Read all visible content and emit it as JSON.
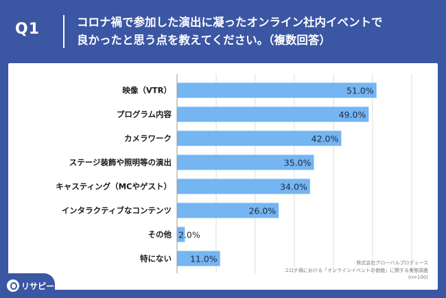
{
  "header": {
    "question_label": "Q1",
    "title_line1": "コロナ禍で参加した演出に凝ったオンライン社内イベントで",
    "title_line2": "良かったと思う点を教えてください。（複数回答）"
  },
  "chart_data": {
    "type": "bar",
    "orientation": "horizontal",
    "categories": [
      "映像（VTR）",
      "プログラム内容",
      "カメラワーク",
      "ステージ装飾や照明等の演出",
      "キャスティング（MCやゲスト）",
      "インタラクティブなコンテンツ",
      "その他",
      "特にない"
    ],
    "values": [
      51.0,
      49.0,
      42.0,
      35.0,
      34.0,
      26.0,
      2.0,
      11.0
    ],
    "value_labels": [
      "51.0%",
      "49.0%",
      "42.0%",
      "35.0%",
      "34.0%",
      "26.0%",
      "2.0%",
      "11.0%"
    ],
    "xlim": [
      0,
      60
    ],
    "gridlines": [
      0,
      10,
      20,
      30,
      40,
      50,
      60
    ],
    "grid": true,
    "bar_color": "#74b5f2"
  },
  "source": {
    "company": "株式会社グローバルプロデュース",
    "survey": "コロナ禍における「オンラインイベントの価値」に関する実態調査",
    "sample": "(n=100)"
  },
  "brand": {
    "name": "リサピー",
    "icon": "risapy-logo-icon"
  },
  "colors": {
    "background": "#3b56a3",
    "panel": "#ffffff",
    "bar": "#74b5f2",
    "label_text": "#1a1a1a",
    "value_text": "#1e2a44"
  }
}
